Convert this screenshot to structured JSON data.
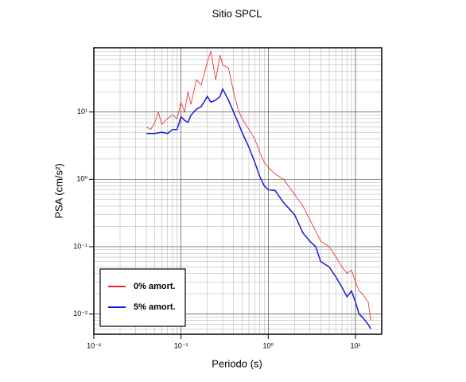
{
  "chart_data": {
    "type": "line",
    "title": "Sitio SPCL",
    "x_label": "Periodo (s)",
    "y_label": "PSA (cm/s²)",
    "x": [
      0.04,
      0.045,
      0.05,
      0.055,
      0.06,
      0.07,
      0.08,
      0.09,
      0.1,
      0.11,
      0.12,
      0.13,
      0.15,
      0.17,
      0.2,
      0.22,
      0.25,
      0.28,
      0.3,
      0.35,
      0.4,
      0.45,
      0.5,
      0.6,
      0.7,
      0.8,
      0.9,
      1,
      1.2,
      1.5,
      2,
      2.5,
      3,
      3.5,
      4,
      5,
      6,
      7,
      8,
      9,
      10,
      11,
      12,
      14,
      15
    ],
    "series": [
      {
        "name": "0% amort.",
        "color": "#e8262a",
        "width": 0.8,
        "values": [
          6,
          5.5,
          7,
          10,
          6.5,
          8,
          9,
          8,
          14,
          10,
          20,
          13,
          30,
          25,
          55,
          80,
          30,
          70,
          50,
          45,
          20,
          11,
          8,
          5.5,
          4,
          2.5,
          1.8,
          1.5,
          1.2,
          1,
          0.6,
          0.4,
          0.25,
          0.17,
          0.12,
          0.1,
          0.07,
          0.05,
          0.04,
          0.045,
          0.03,
          0.022,
          0.02,
          0.015,
          0.008
        ]
      },
      {
        "name": "5% amort.",
        "color": "#1a1adb",
        "width": 1.5,
        "values": [
          4.8,
          4.8,
          4.8,
          4.9,
          5,
          4.8,
          5.5,
          5.5,
          8.5,
          7.5,
          7,
          9,
          11,
          12,
          17,
          14,
          15,
          17,
          22,
          15,
          10,
          7,
          5,
          3,
          1.8,
          1.1,
          0.8,
          0.7,
          0.68,
          0.45,
          0.3,
          0.16,
          0.12,
          0.1,
          0.06,
          0.05,
          0.035,
          0.025,
          0.018,
          0.022,
          0.015,
          0.01,
          0.009,
          0.007,
          0.006
        ]
      }
    ],
    "xlim": [
      0.01,
      20
    ],
    "ylim": [
      0.005,
      90
    ],
    "log_x": true,
    "log_y": true,
    "grid": true,
    "legend": "lower left",
    "xticks": [
      {
        "value": 0.01,
        "label": "10⁻²"
      },
      {
        "value": 0.1,
        "label": "10⁻¹"
      },
      {
        "value": 1,
        "label": "10⁰"
      },
      {
        "value": 10,
        "label": "10¹"
      }
    ],
    "yticks": [
      {
        "value": 0.01,
        "label": "10⁻²"
      },
      {
        "value": 0.1,
        "label": "10⁻¹"
      },
      {
        "value": 1,
        "label": "10⁰"
      },
      {
        "value": 10,
        "label": "10¹"
      }
    ]
  }
}
